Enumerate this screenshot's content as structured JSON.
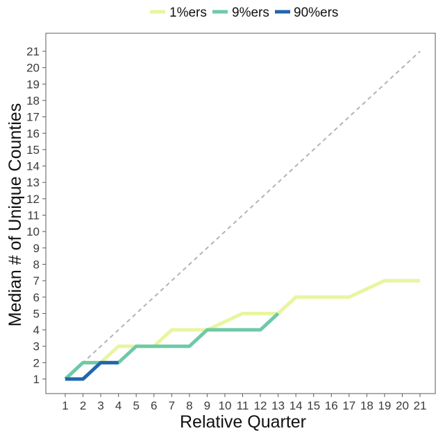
{
  "chart_data": {
    "type": "line",
    "xlabel": "Relative Quarter",
    "ylabel": "Median # of Unique Counties",
    "xlim": [
      1,
      21
    ],
    "ylim": [
      1,
      21
    ],
    "x_ticks": [
      "1",
      "2",
      "3",
      "4",
      "5",
      "6",
      "7",
      "8",
      "9",
      "10",
      "11",
      "12",
      "13",
      "14",
      "15",
      "16",
      "17",
      "18",
      "19",
      "20",
      "21"
    ],
    "y_ticks": [
      "1",
      "2",
      "3",
      "4",
      "5",
      "6",
      "7",
      "8",
      "9",
      "10",
      "11",
      "12",
      "13",
      "14",
      "15",
      "16",
      "17",
      "18",
      "19",
      "20",
      "21"
    ],
    "grid": false,
    "legend_position": "top",
    "reference_line": {
      "style": "dashed",
      "color": "#b3b3b3",
      "x": [
        1,
        21
      ],
      "y": [
        1,
        21
      ]
    },
    "series": [
      {
        "name": "1%ers",
        "color": "#e8f5a0",
        "x": [
          1,
          2,
          3,
          4,
          5,
          6,
          7,
          8,
          9,
          10,
          11,
          12,
          13,
          14,
          15,
          16,
          17,
          18,
          19,
          20,
          21
        ],
        "y": [
          1,
          2,
          2,
          3,
          3,
          3,
          4,
          4,
          4,
          4.5,
          5,
          5,
          5,
          6,
          6,
          6,
          6,
          6.5,
          7,
          7,
          7
        ]
      },
      {
        "name": "9%ers",
        "color": "#6ec9a8",
        "x": [
          1,
          2,
          3,
          4,
          5,
          6,
          7,
          8,
          9,
          10,
          11,
          12,
          13
        ],
        "y": [
          1,
          2,
          2,
          2,
          3,
          3,
          3,
          3,
          4,
          4,
          4,
          4,
          5
        ]
      },
      {
        "name": "90%ers",
        "color": "#2166ac",
        "x": [
          1,
          2,
          3,
          4
        ],
        "y": [
          1,
          1,
          2,
          2
        ]
      }
    ]
  }
}
